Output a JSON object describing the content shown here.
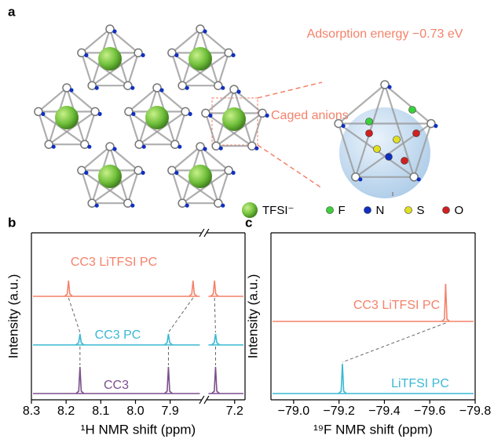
{
  "panel_a": {
    "label": "a",
    "annotation": "Adsorption energy −0.73 eV",
    "callout": "Caged anions",
    "legend": [
      "TFSI⁻",
      "F",
      "N",
      "S",
      "O"
    ]
  },
  "chart_data": [
    {
      "type": "spectrum",
      "panel_label": "b",
      "x_label": "¹H NMR shift (ppm)",
      "y_label": "Intensity (a.u.)",
      "xlim": [
        8.3,
        7.17
      ],
      "x_break": [
        7.81,
        7.28
      ],
      "xticks": [
        8.3,
        8.2,
        8.1,
        {
          "value": 8,
          "label": "8.0"
        },
        7.9,
        7.2
      ],
      "series": [
        {
          "name": "CC3 LiTFSI PC",
          "color": "#f4826a",
          "peaks": [
            8.193,
            7.834,
            7.258
          ]
        },
        {
          "name": "CC3 PC",
          "color": "#3ab8d4",
          "peaks": [
            8.16,
            7.905,
            7.255
          ]
        },
        {
          "name": "CC3",
          "color": "#7d4f8e",
          "peaks": [
            8.16,
            7.905,
            7.255
          ]
        }
      ]
    },
    {
      "type": "spectrum",
      "panel_label": "c",
      "x_label": "¹⁹F NMR shift (ppm)",
      "y_label": "Intensity (a.u.)",
      "xlim": [
        -78.9,
        -79.8
      ],
      "xticks": [
        {
          "value": -79,
          "label": "−79.0"
        },
        {
          "value": -79.2,
          "label": "−79.2"
        },
        {
          "value": -79.4,
          "label": "−79.4"
        },
        {
          "value": -79.6,
          "label": "−79.6"
        },
        {
          "value": -79.8,
          "label": "−79.8"
        }
      ],
      "series": [
        {
          "name": "CC3 LiTFSI PC",
          "color": "#f4826a",
          "peaks": [
            -79.67
          ]
        },
        {
          "name": "LiTFSI PC",
          "color": "#3ab8d4",
          "peaks": [
            -79.215
          ]
        }
      ]
    }
  ]
}
